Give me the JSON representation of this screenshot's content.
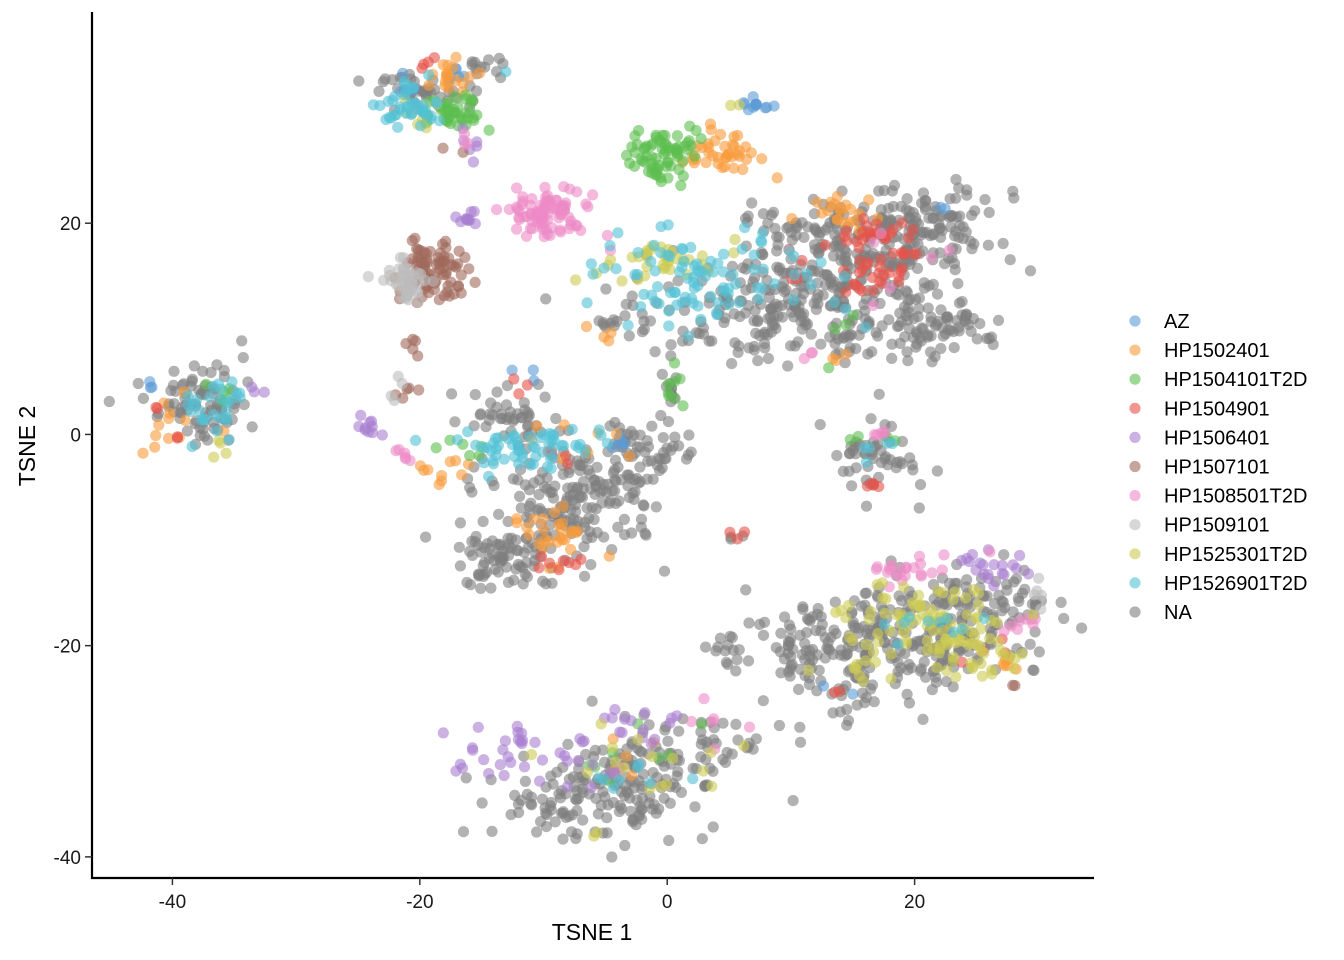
{
  "chart_data": {
    "type": "scatter",
    "title": "",
    "xlabel": "TSNE 1",
    "ylabel": "TSNE 2",
    "xlim": [
      -46.5,
      34.5
    ],
    "ylim": [
      -42,
      40
    ],
    "xticks": [
      -40,
      -20,
      0,
      20
    ],
    "yticks": [
      -40,
      -20,
      0,
      20
    ],
    "grid": false,
    "legend_position": "right",
    "point_alpha": 0.6,
    "series": [
      {
        "name": "AZ",
        "color": "#5B9BD5",
        "clusters": [
          {
            "cx": 6.8,
            "cy": 31,
            "sx": 0.6,
            "sy": 0.4,
            "n": 12
          },
          {
            "cx": -4,
            "cy": -0.5,
            "sx": 0.6,
            "sy": 0.4,
            "n": 6
          },
          {
            "cx": -21,
            "cy": 33,
            "sx": 1.0,
            "sy": 1.0,
            "n": 6
          },
          {
            "cx": -17,
            "cy": 34.5,
            "sx": 1.0,
            "sy": 0.8,
            "n": 4
          },
          {
            "cx": -41,
            "cy": 4.5,
            "sx": 1.0,
            "sy": 0.6,
            "n": 3
          },
          {
            "cx": -11,
            "cy": 5.5,
            "sx": 0.8,
            "sy": 0.6,
            "n": 3
          },
          {
            "cx": 13.5,
            "cy": -24,
            "sx": 0.8,
            "sy": 0.5,
            "n": 2
          },
          {
            "cx": 22,
            "cy": 21.5,
            "sx": 0.8,
            "sy": 0.5,
            "n": 2
          }
        ]
      },
      {
        "name": "HP1502401",
        "color": "#F89B3A",
        "clusters": [
          {
            "cx": 4.5,
            "cy": 26.5,
            "sx": 1.6,
            "sy": 1.3,
            "n": 40
          },
          {
            "cx": -17.5,
            "cy": 34,
            "sx": 1.0,
            "sy": 0.8,
            "n": 18
          },
          {
            "cx": -9,
            "cy": -9.5,
            "sx": 1.6,
            "sy": 1.2,
            "n": 28
          },
          {
            "cx": -18,
            "cy": -3.5,
            "sx": 1.0,
            "sy": 0.7,
            "n": 10
          },
          {
            "cx": 14,
            "cy": 21,
            "sx": 1.5,
            "sy": 1.2,
            "n": 20
          },
          {
            "cx": 28,
            "cy": -21.5,
            "sx": 0.7,
            "sy": 0.6,
            "n": 6
          },
          {
            "cx": -39.5,
            "cy": 1,
            "sx": 1.5,
            "sy": 1.8,
            "n": 12
          },
          {
            "cx": -6,
            "cy": 9.5,
            "sx": 0.6,
            "sy": 0.5,
            "n": 4
          },
          {
            "cx": 14,
            "cy": 7.5,
            "sx": 0.6,
            "sy": 0.5,
            "n": 3
          },
          {
            "cx": -8,
            "cy": -0.5,
            "sx": 2.5,
            "sy": 1.0,
            "n": 8
          },
          {
            "cx": -4,
            "cy": -30,
            "sx": 3.0,
            "sy": 2.0,
            "n": 6
          }
        ]
      },
      {
        "name": "HP1504101T2D",
        "color": "#5BBE4F",
        "clusters": [
          {
            "cx": 0,
            "cy": 26.5,
            "sx": 1.4,
            "sy": 1.2,
            "n": 70
          },
          {
            "cx": -17.5,
            "cy": 30.5,
            "sx": 1.2,
            "sy": 0.9,
            "n": 42
          },
          {
            "cx": 0.5,
            "cy": 4,
            "sx": 0.5,
            "sy": 1.2,
            "n": 8
          },
          {
            "cx": -16.5,
            "cy": -1.5,
            "sx": 0.8,
            "sy": 0.5,
            "n": 6
          },
          {
            "cx": -2,
            "cy": -31,
            "sx": 5.0,
            "sy": 2.5,
            "n": 8
          },
          {
            "cx": 17,
            "cy": 0,
            "sx": 1.5,
            "sy": 1.0,
            "n": 4
          },
          {
            "cx": -36,
            "cy": 4,
            "sx": 1.2,
            "sy": 0.6,
            "n": 5
          },
          {
            "cx": 14,
            "cy": 9,
            "sx": 2.0,
            "sy": 2.0,
            "n": 4
          }
        ]
      },
      {
        "name": "HP1504901",
        "color": "#E8524A",
        "clusters": [
          {
            "cx": 17,
            "cy": 19,
            "sx": 2.0,
            "sy": 1.2,
            "n": 30
          },
          {
            "cx": 16.5,
            "cy": 15,
            "sx": 1.5,
            "sy": 1.0,
            "n": 22
          },
          {
            "cx": -19.5,
            "cy": 35.5,
            "sx": 0.6,
            "sy": 0.5,
            "n": 4
          },
          {
            "cx": -8,
            "cy": -12.5,
            "sx": 1.0,
            "sy": 0.5,
            "n": 8
          },
          {
            "cx": -9,
            "cy": -2,
            "sx": 1.0,
            "sy": 0.6,
            "n": 5
          },
          {
            "cx": -12,
            "cy": 4.5,
            "sx": 0.6,
            "sy": 0.5,
            "n": 3
          },
          {
            "cx": -41.5,
            "cy": 2.5,
            "sx": 0.5,
            "sy": 0.5,
            "n": 2
          },
          {
            "cx": -39.5,
            "cy": -0.5,
            "sx": 0.5,
            "sy": 0.5,
            "n": 2
          },
          {
            "cx": 5.5,
            "cy": -9.5,
            "sx": 0.6,
            "sy": 0.5,
            "n": 3
          },
          {
            "cx": 16,
            "cy": -4.5,
            "sx": 1.0,
            "sy": 0.6,
            "n": 4
          },
          {
            "cx": 26,
            "cy": -21,
            "sx": 1.2,
            "sy": 1.2,
            "n": 4
          },
          {
            "cx": 13,
            "cy": -24.5,
            "sx": 0.6,
            "sy": 0.5,
            "n": 2
          },
          {
            "cx": 11.5,
            "cy": 17,
            "sx": 1.5,
            "sy": 2.0,
            "n": 5
          }
        ]
      },
      {
        "name": "HP1506401",
        "color": "#A97FD0",
        "clusters": [
          {
            "cx": -8,
            "cy": -30,
            "sx": 2.5,
            "sy": 1.5,
            "n": 22
          },
          {
            "cx": -13.5,
            "cy": -30.5,
            "sx": 2.0,
            "sy": 1.2,
            "n": 18
          },
          {
            "cx": -2,
            "cy": -27.5,
            "sx": 2.0,
            "sy": 1.0,
            "n": 14
          },
          {
            "cx": 25.5,
            "cy": -13,
            "sx": 1.5,
            "sy": 1.0,
            "n": 20
          },
          {
            "cx": -16,
            "cy": 20.5,
            "sx": 0.6,
            "sy": 0.4,
            "n": 10
          },
          {
            "cx": -24,
            "cy": 1,
            "sx": 0.5,
            "sy": 0.8,
            "n": 10
          },
          {
            "cx": -16,
            "cy": 27.5,
            "sx": 0.6,
            "sy": 0.8,
            "n": 6
          },
          {
            "cx": -33.5,
            "cy": 4,
            "sx": 0.6,
            "sy": 0.5,
            "n": 3
          }
        ]
      },
      {
        "name": "HP1507101",
        "color": "#A0695C",
        "clusters": [
          {
            "cx": -19,
            "cy": 15.8,
            "sx": 1.2,
            "sy": 1.3,
            "n": 80
          },
          {
            "cx": -20.5,
            "cy": 8.5,
            "sx": 0.3,
            "sy": 0.5,
            "n": 5
          },
          {
            "cx": -21,
            "cy": 4,
            "sx": 0.6,
            "sy": 0.6,
            "n": 5
          },
          {
            "cx": -17,
            "cy": 13.5,
            "sx": 0.8,
            "sy": 0.6,
            "n": 6
          },
          {
            "cx": 28,
            "cy": -24,
            "sx": 0.3,
            "sy": 0.3,
            "n": 2
          },
          {
            "cx": -17.5,
            "cy": 27,
            "sx": 0.5,
            "sy": 0.5,
            "n": 2
          }
        ]
      },
      {
        "name": "HP1508501T2D",
        "color": "#EC8BC6",
        "clusters": [
          {
            "cx": -9.5,
            "cy": 21,
            "sx": 1.6,
            "sy": 1.2,
            "n": 90
          },
          {
            "cx": 20,
            "cy": -13,
            "sx": 2.0,
            "sy": 0.7,
            "n": 22
          },
          {
            "cx": 28.5,
            "cy": -18,
            "sx": 0.8,
            "sy": 0.8,
            "n": 8
          },
          {
            "cx": -21.5,
            "cy": -2,
            "sx": 0.5,
            "sy": 0.5,
            "n": 6
          },
          {
            "cx": 17,
            "cy": 0,
            "sx": 0.8,
            "sy": 0.5,
            "n": 5
          },
          {
            "cx": 3.5,
            "cy": -28,
            "sx": 2.0,
            "sy": 1.5,
            "n": 6
          },
          {
            "cx": 11,
            "cy": 7.5,
            "sx": 0.6,
            "sy": 0.4,
            "n": 3
          },
          {
            "cx": -16,
            "cy": 28,
            "sx": 0.6,
            "sy": 0.5,
            "n": 3
          },
          {
            "cx": 18,
            "cy": 16,
            "sx": 3.0,
            "sy": 1.5,
            "n": 6
          }
        ]
      },
      {
        "name": "HP1509101",
        "color": "#BDBDBD",
        "clusters": [
          {
            "cx": -21,
            "cy": 14.5,
            "sx": 0.9,
            "sy": 1.0,
            "n": 45
          },
          {
            "cx": -21,
            "cy": 4.5,
            "sx": 0.5,
            "sy": 0.6,
            "n": 4
          },
          {
            "cx": 30,
            "cy": -15,
            "sx": 0.5,
            "sy": 0.8,
            "n": 5
          }
        ]
      },
      {
        "name": "HP1525301T2D",
        "color": "#CDCB53",
        "clusters": [
          {
            "cx": 20.5,
            "cy": -18,
            "sx": 3.5,
            "sy": 2.0,
            "n": 80
          },
          {
            "cx": 25,
            "cy": -20.5,
            "sx": 2.0,
            "sy": 1.0,
            "n": 30
          },
          {
            "cx": -1.5,
            "cy": 16.5,
            "sx": 2.5,
            "sy": 1.0,
            "n": 35
          },
          {
            "cx": -2,
            "cy": -31.5,
            "sx": 4.0,
            "sy": 2.0,
            "n": 16
          },
          {
            "cx": -19.5,
            "cy": 30.5,
            "sx": 1.0,
            "sy": 0.8,
            "n": 8
          },
          {
            "cx": 16,
            "cy": -22.5,
            "sx": 1.0,
            "sy": 1.2,
            "n": 8
          },
          {
            "cx": -36,
            "cy": -1,
            "sx": 1.0,
            "sy": 0.5,
            "n": 4
          },
          {
            "cx": 5.8,
            "cy": 31,
            "sx": 0.3,
            "sy": 0.3,
            "n": 2
          },
          {
            "cx": -6,
            "cy": -38,
            "sx": 0.5,
            "sy": 0.3,
            "n": 2
          }
        ]
      },
      {
        "name": "HP1526901T2D",
        "color": "#52C1D6",
        "clusters": [
          {
            "cx": 3,
            "cy": 14.5,
            "sx": 4.5,
            "sy": 2.2,
            "n": 95
          },
          {
            "cx": -12,
            "cy": -1,
            "sx": 3.0,
            "sy": 1.0,
            "n": 60
          },
          {
            "cx": -20.5,
            "cy": 31,
            "sx": 1.2,
            "sy": 1.0,
            "n": 40
          },
          {
            "cx": -36.5,
            "cy": 2.5,
            "sx": 1.2,
            "sy": 1.8,
            "n": 28
          },
          {
            "cx": 21,
            "cy": -18,
            "sx": 2.0,
            "sy": 0.8,
            "n": 10
          },
          {
            "cx": -3,
            "cy": -31.5,
            "sx": 2.5,
            "sy": 1.2,
            "n": 8
          },
          {
            "cx": 17,
            "cy": -1.5,
            "sx": 1.0,
            "sy": 0.8,
            "n": 5
          },
          {
            "cx": -13,
            "cy": 34.5,
            "sx": 0.3,
            "sy": 0.3,
            "n": 1
          }
        ]
      },
      {
        "name": "NA",
        "color": "#7F7F7F",
        "clusters": [
          {
            "cx": 10,
            "cy": 12,
            "sx": 5.5,
            "sy": 2.8,
            "n": 260
          },
          {
            "cx": 16,
            "cy": 18.5,
            "sx": 5.0,
            "sy": 2.5,
            "n": 200
          },
          {
            "cx": 22.5,
            "cy": 10,
            "sx": 2.5,
            "sy": 1.5,
            "n": 60
          },
          {
            "cx": 22,
            "cy": 20,
            "sx": 3.0,
            "sy": 2.0,
            "n": 60
          },
          {
            "cx": -8,
            "cy": -6,
            "sx": 3.5,
            "sy": 3.0,
            "n": 180
          },
          {
            "cx": -13,
            "cy": -11.5,
            "sx": 2.0,
            "sy": 1.5,
            "n": 70
          },
          {
            "cx": -13,
            "cy": 1.5,
            "sx": 2.0,
            "sy": 1.5,
            "n": 40
          },
          {
            "cx": -2,
            "cy": -2,
            "sx": 2.0,
            "sy": 1.5,
            "n": 50
          },
          {
            "cx": 0.3,
            "cy": 5,
            "sx": 0.4,
            "sy": 2.0,
            "n": 14
          },
          {
            "cx": -5,
            "cy": -34,
            "sx": 4.5,
            "sy": 2.2,
            "n": 160
          },
          {
            "cx": 1,
            "cy": -30,
            "sx": 4.0,
            "sy": 1.5,
            "n": 60
          },
          {
            "cx": 16,
            "cy": -20,
            "sx": 4.5,
            "sy": 3.0,
            "n": 190
          },
          {
            "cx": 23,
            "cy": -18,
            "sx": 4.0,
            "sy": 2.5,
            "n": 120
          },
          {
            "cx": 11,
            "cy": -21,
            "sx": 1.0,
            "sy": 1.0,
            "n": 20
          },
          {
            "cx": 5,
            "cy": -20.5,
            "sx": 1.2,
            "sy": 1.0,
            "n": 14
          },
          {
            "cx": -38,
            "cy": 3,
            "sx": 2.0,
            "sy": 2.0,
            "n": 80
          },
          {
            "cx": -20,
            "cy": 33,
            "sx": 2.0,
            "sy": 1.2,
            "n": 40
          },
          {
            "cx": -15,
            "cy": 34.5,
            "sx": 1.2,
            "sy": 0.7,
            "n": 14
          },
          {
            "cx": 17,
            "cy": -2,
            "sx": 2.0,
            "sy": 1.5,
            "n": 50
          },
          {
            "cx": -4,
            "cy": 10.5,
            "sx": 1.5,
            "sy": 0.8,
            "n": 12
          },
          {
            "cx": 26,
            "cy": -15,
            "sx": 2.5,
            "sy": 1.0,
            "n": 25
          },
          {
            "cx": 29.5,
            "cy": -15.5,
            "sx": 0.5,
            "sy": 0.5,
            "n": 6
          },
          {
            "cx": -9.5,
            "cy": 12.5,
            "sx": 0.3,
            "sy": 0.3,
            "n": 1
          },
          {
            "cx": -19,
            "cy": -9.5,
            "sx": 0.3,
            "sy": 0.3,
            "n": 1
          },
          {
            "cx": 20,
            "cy": -7,
            "sx": 0.3,
            "sy": 0.3,
            "n": 1
          },
          {
            "cx": 5.5,
            "cy": -10,
            "sx": 0.8,
            "sy": 0.4,
            "n": 3
          }
        ]
      }
    ]
  }
}
